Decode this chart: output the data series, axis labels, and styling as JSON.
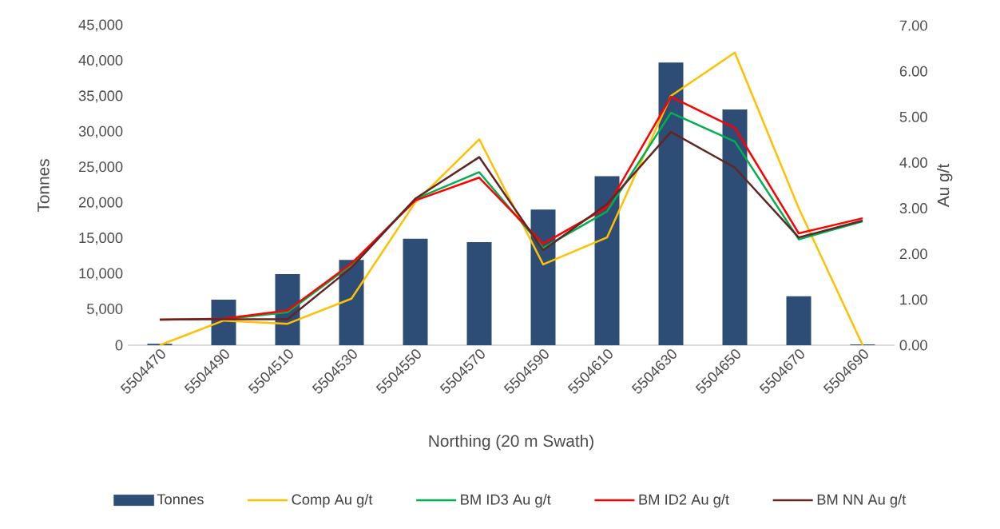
{
  "chart_data": {
    "type": "bar",
    "xlabel": "Northing (20 m Swath)",
    "ylabel": "Tonnes",
    "y2label": "Au g/t",
    "categories": [
      "5504470",
      "5504490",
      "5504510",
      "5504530",
      "5504550",
      "5504570",
      "5504590",
      "5504610",
      "5504630",
      "5504650",
      "5504670",
      "5504690"
    ],
    "series": [
      {
        "name": "Tonnes",
        "color": "#2e4d76",
        "values": [
          200,
          6400,
          10000,
          12000,
          15000,
          14500,
          19100,
          23800,
          39800,
          33200,
          6900,
          100
        ]
      },
      {
        "name": "Comp Au g/t",
        "type": "line",
        "axis": "y2",
        "color": "#ffc000",
        "values": [
          0,
          0.54,
          0.47,
          1.02,
          3.13,
          4.51,
          1.77,
          2.36,
          5.46,
          6.41,
          3.0,
          0
        ]
      },
      {
        "name": "BM ID3 Au g/t",
        "type": "line",
        "axis": "y2",
        "color": "#00b050",
        "values": [
          null,
          0.57,
          0.72,
          1.76,
          3.2,
          3.79,
          2.13,
          2.93,
          5.09,
          4.46,
          2.32,
          2.71
        ]
      },
      {
        "name": "BM ID2 Au g/t",
        "type": "line",
        "axis": "y2",
        "color": "#ff0000",
        "values": [
          0.56,
          0.58,
          0.76,
          1.79,
          3.17,
          3.67,
          2.22,
          3.02,
          5.44,
          4.76,
          2.45,
          2.78
        ]
      },
      {
        "name": "BM NN Au g/t",
        "type": "line",
        "axis": "y2",
        "color": "#632523",
        "values": [
          0.56,
          0.57,
          0.57,
          1.7,
          3.21,
          4.12,
          2.08,
          3.09,
          4.67,
          3.89,
          2.36,
          2.73
        ]
      }
    ],
    "ylim": [
      0,
      45000
    ],
    "yticks": [
      {
        "value": 0,
        "label": "0"
      },
      {
        "value": 5000,
        "label": "5,000"
      },
      {
        "value": 10000,
        "label": "10,000"
      },
      {
        "value": 15000,
        "label": "15,000"
      },
      {
        "value": 20000,
        "label": "20,000"
      },
      {
        "value": 25000,
        "label": "25,000"
      },
      {
        "value": 30000,
        "label": "30,000"
      },
      {
        "value": 35000,
        "label": "35,000"
      },
      {
        "value": 40000,
        "label": "40,000"
      },
      {
        "value": 45000,
        "label": "45,000"
      }
    ],
    "y2lim": [
      0,
      7
    ],
    "y2ticks": [
      {
        "value": 0,
        "label": "0.00"
      },
      {
        "value": 1,
        "label": "1.00"
      },
      {
        "value": 2,
        "label": "2.00"
      },
      {
        "value": 3,
        "label": "3.00"
      },
      {
        "value": 4,
        "label": "4.00"
      },
      {
        "value": 5,
        "label": "5.00"
      },
      {
        "value": 6,
        "label": "6.00"
      },
      {
        "value": 7,
        "label": "7.00"
      }
    ],
    "legend": "bottom"
  }
}
